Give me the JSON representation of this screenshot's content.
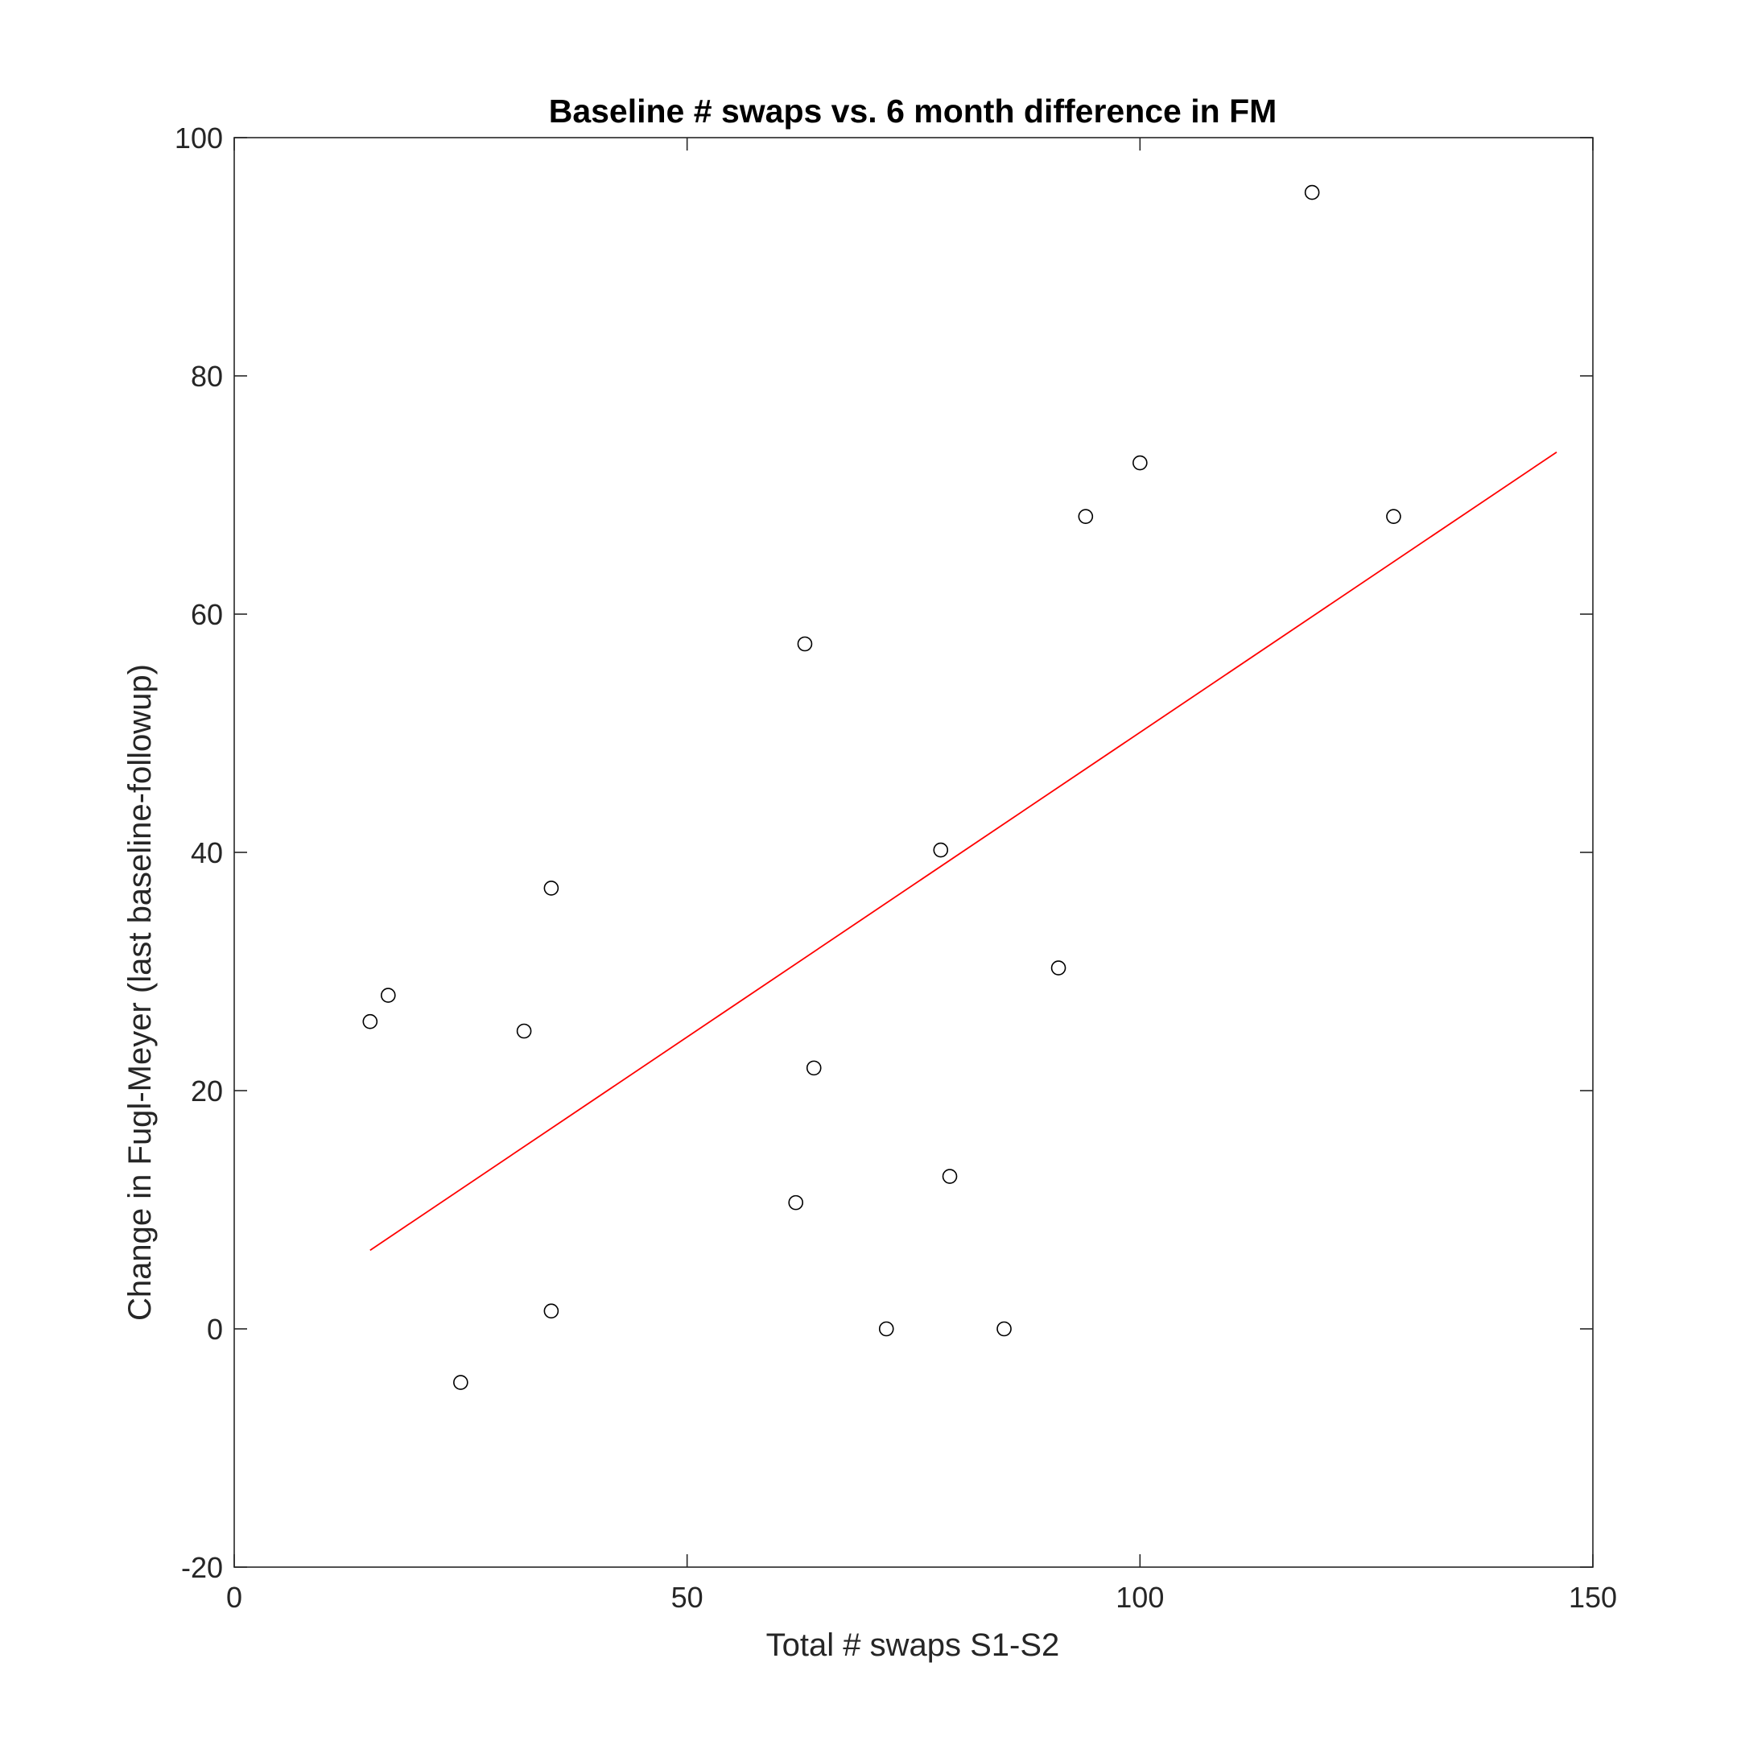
{
  "colors": {
    "background": "#ffffff",
    "axes": "#262626",
    "markers": "#000000",
    "fit_line": "#ff0000"
  },
  "chart_data": {
    "type": "scatter",
    "title": "Baseline # swaps vs. 6 month difference in FM",
    "xlabel": "Total # swaps S1-S2",
    "ylabel": "Change in Fugl-Meyer (last baseline-followup)",
    "xlim": [
      0,
      150
    ],
    "ylim": [
      -20,
      100
    ],
    "xticks": [
      0,
      50,
      100,
      150
    ],
    "yticks": [
      -20,
      0,
      20,
      40,
      60,
      80,
      100
    ],
    "grid": false,
    "marker": "open-circle",
    "points": [
      {
        "x": 15,
        "y": 25.8
      },
      {
        "x": 17,
        "y": 28
      },
      {
        "x": 25,
        "y": -4.5
      },
      {
        "x": 32,
        "y": 25
      },
      {
        "x": 35,
        "y": 37
      },
      {
        "x": 35,
        "y": 1.5
      },
      {
        "x": 62,
        "y": 10.6
      },
      {
        "x": 63,
        "y": 57.5
      },
      {
        "x": 64,
        "y": 21.9
      },
      {
        "x": 72,
        "y": 0
      },
      {
        "x": 78,
        "y": 40.2
      },
      {
        "x": 79,
        "y": 12.8
      },
      {
        "x": 85,
        "y": 0
      },
      {
        "x": 91,
        "y": 30.3
      },
      {
        "x": 94,
        "y": 68.2
      },
      {
        "x": 100,
        "y": 72.7
      },
      {
        "x": 119,
        "y": 95.4
      },
      {
        "x": 128,
        "y": 68.2
      }
    ],
    "fit_line": {
      "x": [
        15,
        146
      ],
      "y": [
        6.6,
        73.6
      ]
    }
  }
}
